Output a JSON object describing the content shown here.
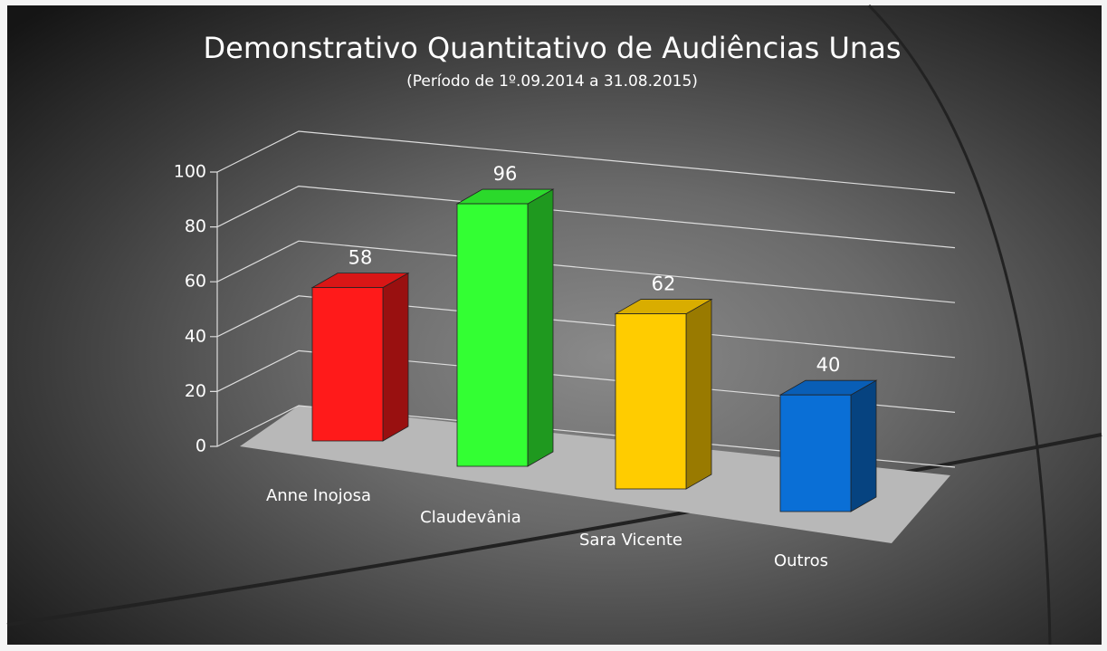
{
  "chart_data": {
    "type": "bar3d",
    "title": "Demonstrativo Quantitativo de Audiências Unas",
    "subtitle": "(Período de 1º.09.2014  a  31.08.2015)",
    "categories": [
      "Anne Inojosa",
      "Claudevânia",
      "Sara Vicente",
      "Outros"
    ],
    "values": [
      58,
      96,
      62,
      40
    ],
    "colors": [
      "#ff1a1a",
      "#33ff33",
      "#ffcc00",
      "#0a6fd6"
    ],
    "ylim": [
      0,
      100
    ],
    "yticks": [
      0,
      20,
      40,
      60,
      80,
      100
    ],
    "grid": true
  }
}
